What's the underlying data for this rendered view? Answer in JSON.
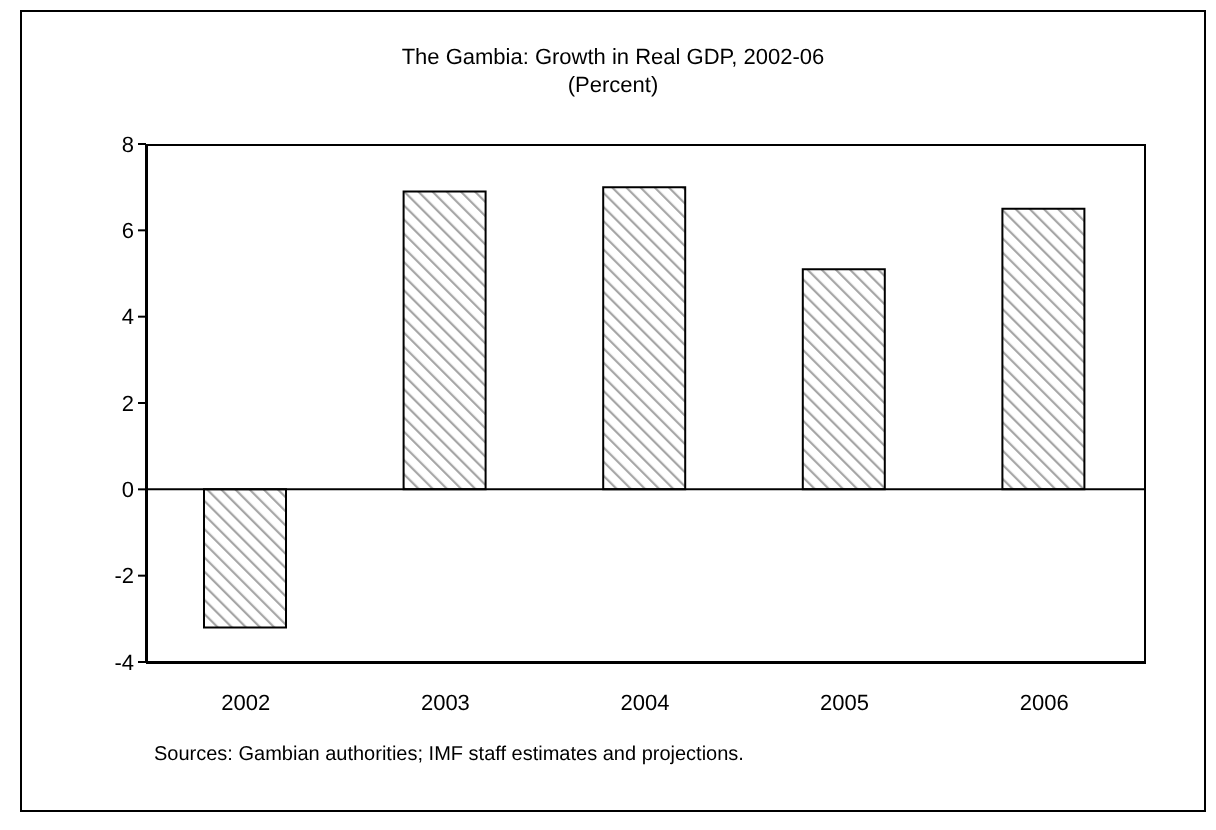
{
  "chart_data": {
    "type": "bar",
    "title": "The Gambia: Growth in Real GDP, 2002-06",
    "subtitle": "(Percent)",
    "categories": [
      "2002",
      "2003",
      "2004",
      "2005",
      "2006"
    ],
    "values": [
      -3.2,
      6.9,
      7.0,
      5.1,
      6.5
    ],
    "color": "#000000",
    "ylim": [
      -4,
      8
    ],
    "yticks": [
      -4,
      -2,
      0,
      2,
      4,
      6,
      8
    ],
    "annotations": [
      "Sources: Gambian authorities; IMF staff estimates and projections."
    ]
  }
}
